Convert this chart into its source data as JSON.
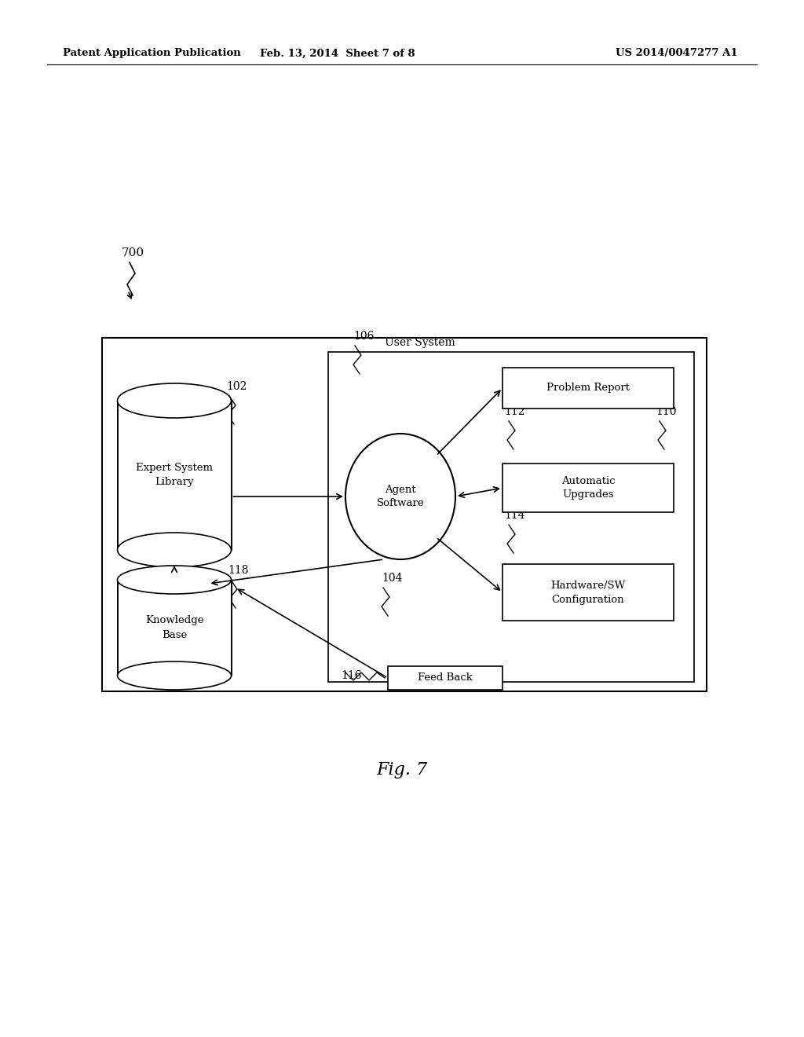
{
  "bg_color": "#ffffff",
  "header_left": "Patent Application Publication",
  "header_mid": "Feb. 13, 2014  Sheet 7 of 8",
  "header_right": "US 2014/0047277 A1",
  "fig_label": "Fig. 7",
  "diagram_label": "700",
  "user_system_label": "User System",
  "user_system_ref": "106",
  "expert_lib_text": "Expert System\nLibrary",
  "expert_lib_ref": "102",
  "agent_text": "Agent\nSoftware",
  "agent_ref": "104",
  "knowledge_text": "Knowledge\nBase",
  "knowledge_ref": "118",
  "problem_report_text": "Problem Report",
  "problem_report_ref": "110",
  "auto_upgrades_text": "Automatic\nUpgrades",
  "auto_upgrades_ref": "112",
  "hw_config_text": "Hardware/SW\nConfiguration",
  "hw_config_ref": "114",
  "feedback_text": "Feed Back",
  "feedback_ref": "116"
}
